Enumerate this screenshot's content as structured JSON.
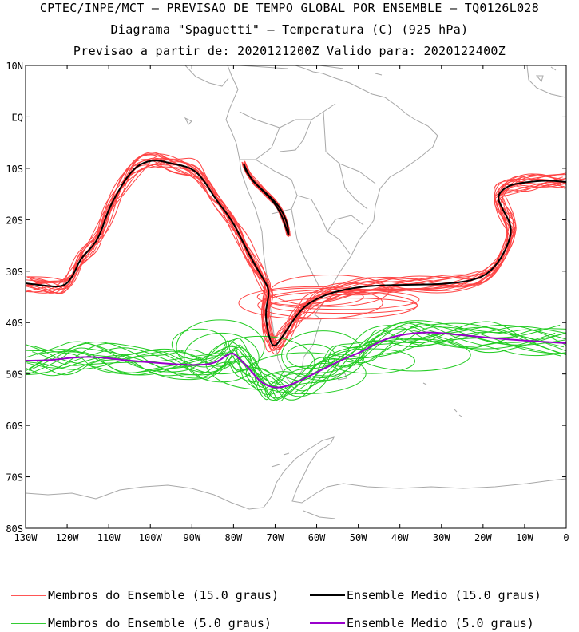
{
  "header": {
    "line1": "CPTEC/INPE/MCT — PREVISAO DE TEMPO GLOBAL POR ENSEMBLE — TQ0126L028",
    "line2": "Diagrama \"Spaguetti\" — Temperatura (C) (925 hPa)",
    "line3": "Previsao a partir de: 2020121200Z  Valido para: 2020122400Z"
  },
  "axes": {
    "lat_labels": [
      "10N",
      "EQ",
      "10S",
      "20S",
      "30S",
      "40S",
      "50S",
      "60S",
      "70S",
      "80S"
    ],
    "lon_labels": [
      "130W",
      "120W",
      "110W",
      "100W",
      "90W",
      "80W",
      "70W",
      "60W",
      "50W",
      "40W",
      "30W",
      "20W",
      "10W",
      "0"
    ]
  },
  "legend": [
    {
      "label": "Membros do Ensemble (15.0 graus)",
      "color": "#ff5555"
    },
    {
      "label": "Ensemble Medio (15.0 graus)",
      "color": "#000000"
    },
    {
      "label": "Membros do Ensemble (5.0 graus)",
      "color": "#33cc33"
    },
    {
      "label": "Ensemble Medio (5.0 graus)",
      "color": "#9900cc"
    }
  ],
  "colors": {
    "coast": "#a8a8a8",
    "member15": "#ff4444",
    "mean15": "#000000",
    "member5": "#22cc22",
    "mean5": "#9900cc"
  }
}
